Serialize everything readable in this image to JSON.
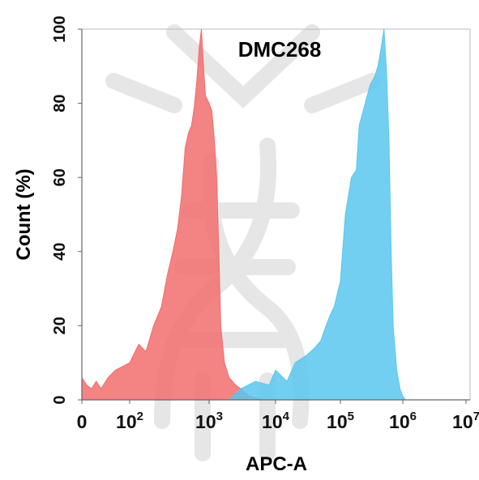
{
  "chart_data": {
    "type": "area",
    "title": "DMC268",
    "xlabel": "APC-A",
    "ylabel": "Count  (%)",
    "x_scale": "biexponential",
    "xlim": [
      0,
      10000000
    ],
    "ylim": [
      0,
      100
    ],
    "x_ticks": [
      {
        "value": 0,
        "base": "0",
        "exp": ""
      },
      {
        "value": 100,
        "base": "10",
        "exp": "2"
      },
      {
        "value": 1000,
        "base": "10",
        "exp": "3"
      },
      {
        "value": 10000,
        "base": "10",
        "exp": "4"
      },
      {
        "value": 100000,
        "base": "10",
        "exp": "5"
      },
      {
        "value": 1000000,
        "base": "10",
        "exp": "6"
      },
      {
        "value": 10000000,
        "base": "10",
        "exp": "7"
      }
    ],
    "y_ticks": [
      0,
      20,
      40,
      60,
      80,
      100
    ],
    "series": [
      {
        "color": "#f26d6d",
        "x": [
          0,
          10,
          20,
          30,
          40,
          55,
          70,
          100,
          130,
          160,
          200,
          250,
          300,
          350,
          400,
          450,
          500,
          550,
          600,
          650,
          700,
          750,
          800,
          850,
          900,
          1000,
          1100,
          1200,
          1300,
          1400,
          1500,
          1700,
          2000,
          2500,
          3000,
          4000,
          5000,
          6000
        ],
        "y": [
          6,
          4,
          3,
          5,
          3,
          6,
          8,
          10,
          15,
          13,
          20,
          25,
          34,
          40,
          46,
          55,
          68,
          72,
          74,
          79,
          86,
          95,
          100,
          90,
          82,
          80,
          78,
          70,
          60,
          40,
          20,
          10,
          6,
          4,
          3,
          1,
          0.5,
          0
        ]
      },
      {
        "color": "#59c7ee",
        "x": [
          2000,
          3000,
          5000,
          8000,
          10000,
          15000,
          20000,
          30000,
          40000,
          50000,
          60000,
          70000,
          80000,
          100000,
          120000,
          150000,
          180000,
          200000,
          250000,
          300000,
          350000,
          400000,
          450000,
          500000,
          550000,
          600000,
          650000,
          700000,
          800000,
          900000,
          1000000,
          1100000
        ],
        "y": [
          0,
          3,
          5,
          4,
          8,
          5,
          10,
          12,
          14,
          16,
          20,
          23,
          25,
          32,
          50,
          60,
          62,
          74,
          80,
          85,
          87,
          90,
          95,
          100,
          88,
          70,
          40,
          20,
          8,
          3,
          1,
          0
        ]
      }
    ]
  }
}
